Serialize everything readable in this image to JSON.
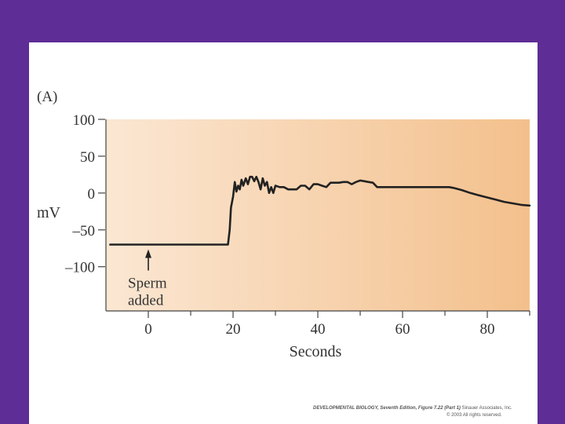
{
  "chart_data": {
    "type": "line",
    "panel_label": "(A)",
    "xlabel": "Seconds",
    "ylabel": "mV",
    "xlim": [
      -10,
      90
    ],
    "ylim": [
      -160,
      100
    ],
    "xticks": [
      0,
      20,
      40,
      60,
      80
    ],
    "yticks": [
      100,
      50,
      0,
      -50,
      -100
    ],
    "ytick_labels": [
      "100",
      "50",
      "0",
      "–50",
      "–100"
    ],
    "grid": false,
    "annotation": {
      "lines": [
        "Sperm",
        "added"
      ],
      "x": 0,
      "y": -70
    },
    "series": [
      {
        "x": [
          -9,
          18.8,
          19.2,
          19.5,
          20,
          20.4,
          20.8,
          21.2,
          21.6,
          22,
          22.4,
          23,
          23.5,
          24,
          24.5,
          25,
          25.5,
          26,
          26.5,
          27,
          27.5,
          28,
          28.5,
          29,
          29.5,
          30,
          31,
          32,
          33,
          35,
          36,
          37,
          38,
          39,
          40,
          41,
          42,
          43,
          44,
          45,
          46,
          47,
          48,
          49,
          50,
          51,
          52,
          53,
          54,
          56,
          58,
          60,
          62,
          65,
          68,
          71,
          72,
          74,
          76,
          78,
          80,
          82,
          84,
          86,
          88,
          90
        ],
        "y": [
          -70,
          -70,
          -50,
          -20,
          -5,
          15,
          2,
          10,
          5,
          18,
          10,
          20,
          12,
          22,
          22,
          16,
          22,
          15,
          5,
          20,
          10,
          15,
          0,
          8,
          0,
          10,
          8,
          8,
          5,
          5,
          10,
          10,
          5,
          12,
          12,
          10,
          8,
          14,
          14,
          14,
          15,
          15,
          12,
          15,
          17,
          16,
          15,
          14,
          8,
          8,
          8,
          8,
          8,
          8,
          8,
          8,
          7,
          4,
          0,
          -3,
          -6,
          -9,
          -12,
          -14,
          -16,
          -17
        ]
      }
    ]
  },
  "footer": {
    "book_title": "DEVELOPMENTAL BIOLOGY, Seventh Edition, Figure 7.22 (Part 1)",
    "publisher": "Sinauer Associates, Inc.",
    "copyright": "© 2003 All rights reserved."
  }
}
